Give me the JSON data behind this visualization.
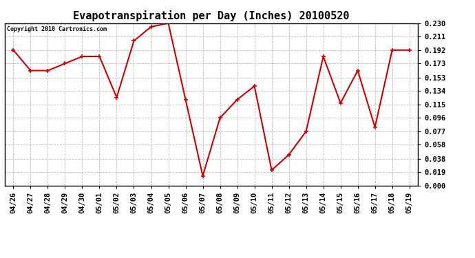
{
  "title": "Evapotranspiration per Day (Inches) 20100520",
  "copyright": "Copyright 2010 Cartronics.com",
  "dates": [
    "04/26",
    "04/27",
    "04/28",
    "04/29",
    "04/30",
    "05/01",
    "05/02",
    "05/03",
    "05/04",
    "05/05",
    "05/06",
    "05/07",
    "05/08",
    "05/09",
    "05/10",
    "05/11",
    "05/12",
    "05/13",
    "05/14",
    "05/15",
    "05/16",
    "05/17",
    "05/18",
    "05/19"
  ],
  "values": [
    0.192,
    0.163,
    0.163,
    0.173,
    0.183,
    0.183,
    0.125,
    0.205,
    0.225,
    0.23,
    0.122,
    0.014,
    0.096,
    0.122,
    0.141,
    0.022,
    0.044,
    0.077,
    0.183,
    0.117,
    0.163,
    0.083,
    0.192,
    0.192
  ],
  "line_color": "#cc0000",
  "marker": "+",
  "marker_size": 5,
  "marker_linewidth": 1.2,
  "line_width": 1.5,
  "ylim": [
    0.0,
    0.23
  ],
  "yticks": [
    0.0,
    0.019,
    0.038,
    0.058,
    0.077,
    0.096,
    0.115,
    0.134,
    0.153,
    0.173,
    0.192,
    0.211,
    0.23
  ],
  "bg_color": "#ffffff",
  "grid_color": "#bbbbbb",
  "title_fontsize": 11,
  "copyright_fontsize": 6,
  "tick_fontsize": 7.5,
  "figwidth": 6.9,
  "figheight": 3.75,
  "dpi": 100
}
